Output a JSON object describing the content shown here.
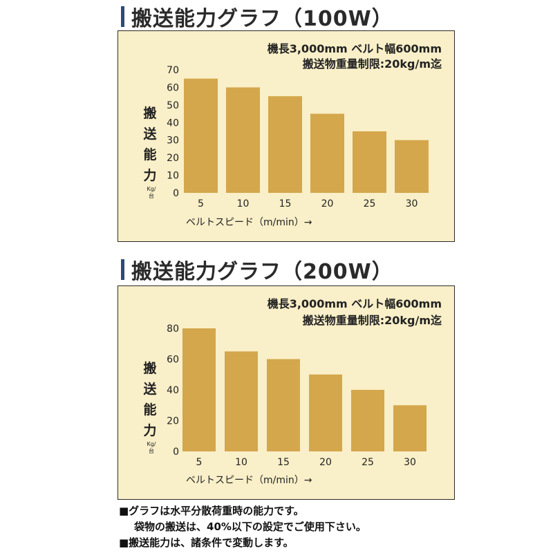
{
  "charts": [
    {
      "title": "搬送能力グラフ（100W）",
      "spec_line1": "機長3,000mm ベルト幅600mm",
      "spec_line2": "搬送物重量制限:20kg/m迄",
      "ylabel_chars": [
        "搬",
        "送",
        "能",
        "力"
      ],
      "yunit": "Kg/台",
      "xlabel": "ベルトスピード（m/min）→",
      "bar_color": "#d4a74c"
    },
    {
      "title": "搬送能力グラフ（200W）",
      "spec_line1": "機長3,000mm ベルト幅600mm",
      "spec_line2": "搬送物重量制限:20kg/m迄",
      "ylabel_chars": [
        "搬",
        "送",
        "能",
        "力"
      ],
      "yunit": "Kg/台",
      "xlabel": "ベルトスピード（m/min）→",
      "bar_color": "#d4a74c"
    }
  ],
  "chart_data": [
    {
      "type": "bar",
      "categories": [
        "5",
        "10",
        "15",
        "20",
        "25",
        "30"
      ],
      "values": [
        65,
        60,
        55,
        45,
        35,
        30
      ],
      "ylim": [
        0,
        70
      ],
      "yticks": [
        0,
        10,
        20,
        30,
        40,
        50,
        60,
        70
      ],
      "xlabel": "ベルトスピード（m/min）→",
      "ylabel": "搬送能力 Kg/台",
      "grid": false
    },
    {
      "type": "bar",
      "categories": [
        "5",
        "10",
        "15",
        "20",
        "25",
        "30"
      ],
      "values": [
        80,
        65,
        60,
        50,
        40,
        30
      ],
      "ylim": [
        0,
        80
      ],
      "yticks": [
        0,
        20,
        40,
        60,
        80
      ],
      "xlabel": "ベルトスピード（m/min）→",
      "ylabel": "搬送能力 Kg/台",
      "grid": false
    }
  ],
  "notes": [
    "■グラフは水平分散荷重時の能力です。",
    "袋物の搬送は、40%以下の設定でご使用下さい。",
    "■搬送能力は、諸条件で変動します。"
  ]
}
